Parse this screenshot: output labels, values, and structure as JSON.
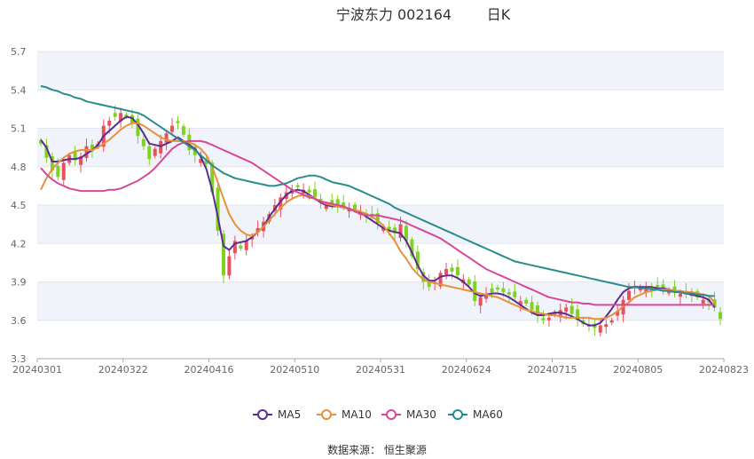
{
  "title": {
    "name": "宁波东力 002164",
    "period": "日K"
  },
  "source_text": "数据来源： 恒生聚源",
  "colors": {
    "up": "#e8515b",
    "down": "#7ed321",
    "MA5": "#5b2c91",
    "MA10": "#e8903a",
    "MA30": "#d9479a",
    "MA60": "#2b8c8c",
    "band": "#f1f3fa"
  },
  "chart_data": {
    "type": "candlestick",
    "x_ticks": [
      "20240301",
      "20240322",
      "20240416",
      "20240510",
      "20240531",
      "20240624",
      "20240715",
      "20240805",
      "20240823"
    ],
    "y_ticks": [
      "3.3",
      "3.6",
      "3.9",
      "4.2",
      "4.5",
      "4.8",
      "5.1",
      "5.4",
      "5.7"
    ],
    "ylim": [
      3.3,
      5.7
    ],
    "close": [
      4.98,
      4.87,
      4.77,
      4.72,
      4.83,
      4.89,
      4.85,
      4.88,
      4.96,
      4.92,
      4.98,
      5.12,
      5.16,
      5.19,
      5.22,
      5.19,
      5.14,
      5.04,
      4.96,
      4.86,
      4.94,
      5.0,
      5.06,
      5.12,
      5.14,
      5.05,
      4.93,
      4.89,
      4.86,
      4.82,
      4.6,
      4.3,
      3.95,
      4.1,
      4.22,
      4.16,
      4.22,
      4.25,
      4.32,
      4.37,
      4.43,
      4.5,
      4.56,
      4.6,
      4.62,
      4.64,
      4.62,
      4.6,
      4.56,
      4.52,
      4.5,
      4.51,
      4.5,
      4.49,
      4.48,
      4.46,
      4.45,
      4.42,
      4.4,
      4.36,
      4.33,
      4.3,
      4.28,
      4.35,
      4.22,
      4.1,
      4.0,
      3.9,
      3.86,
      3.9,
      3.97,
      4.0,
      3.98,
      3.95,
      3.92,
      3.88,
      3.75,
      3.78,
      3.8,
      3.82,
      3.84,
      3.82,
      3.8,
      3.78,
      3.75,
      3.73,
      3.68,
      3.64,
      3.6,
      3.62,
      3.66,
      3.68,
      3.7,
      3.65,
      3.6,
      3.57,
      3.55,
      3.54,
      3.56,
      3.57,
      3.6,
      3.67,
      3.76,
      3.83,
      3.87,
      3.86,
      3.85,
      3.84,
      3.86,
      3.85,
      3.84,
      3.82,
      3.81,
      3.8,
      3.79,
      3.78,
      3.76,
      3.74,
      3.7,
      3.61
    ],
    "series": [
      {
        "name": "MA5",
        "values": [
          5.01,
          4.95,
          4.84,
          4.84,
          4.85,
          4.86,
          4.86,
          4.87,
          4.9,
          4.93,
          4.97,
          5.04,
          5.08,
          5.12,
          5.16,
          5.19,
          5.18,
          5.13,
          5.06,
          4.98,
          4.97,
          4.96,
          4.98,
          5.0,
          5.03,
          5.0,
          4.97,
          4.94,
          4.88,
          4.78,
          4.62,
          4.41,
          4.18,
          4.15,
          4.2,
          4.21,
          4.22,
          4.25,
          4.29,
          4.33,
          4.41,
          4.47,
          4.53,
          4.58,
          4.61,
          4.62,
          4.61,
          4.58,
          4.55,
          4.52,
          4.5,
          4.49,
          4.49,
          4.48,
          4.47,
          4.46,
          4.44,
          4.41,
          4.38,
          4.35,
          4.32,
          4.3,
          4.29,
          4.28,
          4.22,
          4.13,
          4.03,
          3.95,
          3.91,
          3.91,
          3.94,
          3.95,
          3.95,
          3.93,
          3.9,
          3.86,
          3.81,
          3.79,
          3.8,
          3.81,
          3.81,
          3.8,
          3.78,
          3.75,
          3.72,
          3.69,
          3.66,
          3.64,
          3.64,
          3.65,
          3.66,
          3.66,
          3.65,
          3.63,
          3.61,
          3.58,
          3.56,
          3.56,
          3.58,
          3.63,
          3.69,
          3.76,
          3.82,
          3.85,
          3.86,
          3.86,
          3.86,
          3.86,
          3.85,
          3.85,
          3.84,
          3.83,
          3.82,
          3.81,
          3.8,
          3.79,
          3.78,
          3.76,
          3.7
        ]
      },
      {
        "name": "MA10",
        "values": [
          4.62,
          4.71,
          4.78,
          4.83,
          4.87,
          4.9,
          4.92,
          4.93,
          4.93,
          4.93,
          4.95,
          4.98,
          5.01,
          5.05,
          5.09,
          5.12,
          5.14,
          5.14,
          5.12,
          5.09,
          5.06,
          5.03,
          5.01,
          5.0,
          5.0,
          5.0,
          4.99,
          4.97,
          4.94,
          4.89,
          4.8,
          4.68,
          4.55,
          4.43,
          4.35,
          4.3,
          4.27,
          4.26,
          4.29,
          4.33,
          4.38,
          4.43,
          4.48,
          4.52,
          4.55,
          4.57,
          4.58,
          4.57,
          4.55,
          4.53,
          4.51,
          4.5,
          4.49,
          4.48,
          4.47,
          4.46,
          4.45,
          4.43,
          4.41,
          4.38,
          4.34,
          4.28,
          4.22,
          4.14,
          4.08,
          4.01,
          3.96,
          3.92,
          3.9,
          3.89,
          3.88,
          3.87,
          3.86,
          3.85,
          3.84,
          3.83,
          3.82,
          3.81,
          3.8,
          3.79,
          3.78,
          3.76,
          3.74,
          3.72,
          3.7,
          3.68,
          3.67,
          3.66,
          3.65,
          3.64,
          3.64,
          3.63,
          3.62,
          3.62,
          3.62,
          3.62,
          3.62,
          3.61,
          3.61,
          3.62,
          3.64,
          3.67,
          3.71,
          3.74,
          3.78,
          3.8,
          3.82,
          3.83,
          3.84,
          3.84,
          3.84,
          3.83,
          3.83,
          3.82,
          3.82,
          3.81,
          3.8,
          3.79,
          3.74
        ]
      },
      {
        "name": "MA30",
        "values": [
          4.79,
          4.74,
          4.7,
          4.67,
          4.65,
          4.63,
          4.62,
          4.61,
          4.61,
          4.61,
          4.61,
          4.61,
          4.62,
          4.62,
          4.63,
          4.65,
          4.67,
          4.69,
          4.72,
          4.75,
          4.79,
          4.84,
          4.89,
          4.94,
          4.97,
          4.99,
          5.0,
          5.0,
          5.0,
          4.99,
          4.97,
          4.95,
          4.93,
          4.91,
          4.89,
          4.87,
          4.85,
          4.83,
          4.8,
          4.77,
          4.74,
          4.71,
          4.68,
          4.65,
          4.62,
          4.6,
          4.58,
          4.56,
          4.55,
          4.53,
          4.52,
          4.51,
          4.5,
          4.49,
          4.47,
          4.45,
          4.43,
          4.42,
          4.42,
          4.42,
          4.41,
          4.4,
          4.39,
          4.38,
          4.36,
          4.34,
          4.32,
          4.3,
          4.28,
          4.26,
          4.24,
          4.21,
          4.18,
          4.15,
          4.12,
          4.09,
          4.06,
          4.03,
          4.0,
          3.98,
          3.96,
          3.94,
          3.92,
          3.9,
          3.88,
          3.86,
          3.84,
          3.82,
          3.8,
          3.78,
          3.77,
          3.76,
          3.75,
          3.74,
          3.74,
          3.73,
          3.73,
          3.72,
          3.72,
          3.72,
          3.72,
          3.72,
          3.72,
          3.72,
          3.72,
          3.72,
          3.72,
          3.72,
          3.72,
          3.72,
          3.72,
          3.72,
          3.72,
          3.72,
          3.72,
          3.72,
          3.72,
          3.72,
          3.72
        ]
      },
      {
        "name": "MA60",
        "values": [
          5.43,
          5.42,
          5.4,
          5.39,
          5.37,
          5.36,
          5.34,
          5.33,
          5.31,
          5.3,
          5.29,
          5.28,
          5.27,
          5.26,
          5.25,
          5.24,
          5.23,
          5.22,
          5.2,
          5.17,
          5.14,
          5.11,
          5.08,
          5.05,
          5.02,
          4.99,
          4.96,
          4.93,
          4.89,
          4.85,
          4.81,
          4.78,
          4.75,
          4.73,
          4.71,
          4.7,
          4.69,
          4.68,
          4.67,
          4.66,
          4.65,
          4.65,
          4.66,
          4.67,
          4.69,
          4.71,
          4.72,
          4.73,
          4.73,
          4.72,
          4.7,
          4.68,
          4.67,
          4.66,
          4.65,
          4.63,
          4.61,
          4.59,
          4.57,
          4.55,
          4.53,
          4.51,
          4.48,
          4.46,
          4.44,
          4.42,
          4.4,
          4.38,
          4.36,
          4.34,
          4.32,
          4.3,
          4.28,
          4.26,
          4.24,
          4.22,
          4.2,
          4.18,
          4.16,
          4.14,
          4.12,
          4.1,
          4.08,
          4.06,
          4.05,
          4.04,
          4.03,
          4.02,
          4.01,
          4.0,
          3.99,
          3.98,
          3.97,
          3.96,
          3.95,
          3.94,
          3.93,
          3.92,
          3.91,
          3.9,
          3.89,
          3.88,
          3.87,
          3.86,
          3.86,
          3.85,
          3.85,
          3.84,
          3.84,
          3.83,
          3.83,
          3.82,
          3.82,
          3.81,
          3.81,
          3.8,
          3.8,
          3.79,
          3.79
        ]
      }
    ],
    "legend": [
      "MA5",
      "MA10",
      "MA30",
      "MA60"
    ]
  }
}
